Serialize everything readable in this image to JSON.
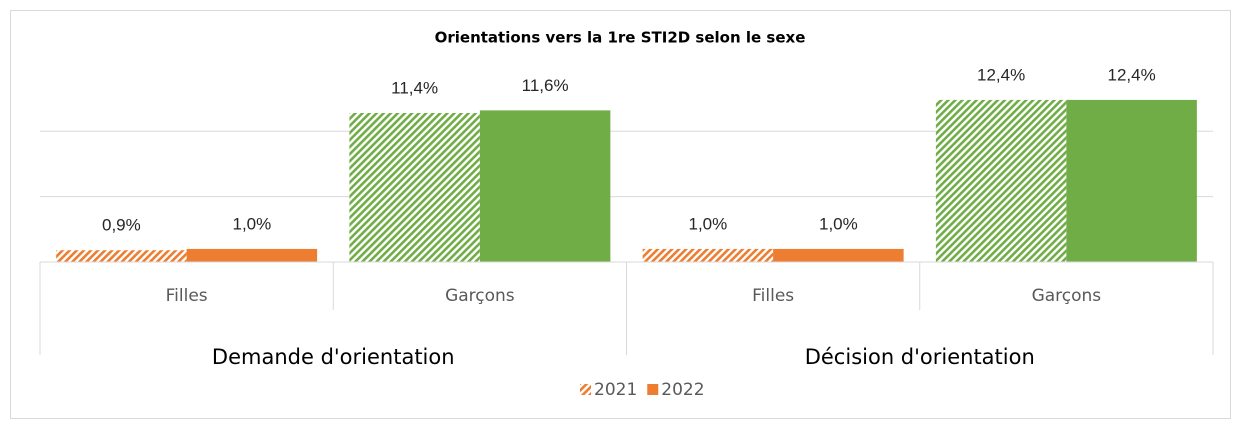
{
  "chart_data": {
    "type": "bar",
    "title": "Orientations vers la 1re STI2D selon le sexe",
    "groups": [
      "Demande d'orientation",
      "Décision d'orientation"
    ],
    "categories": [
      "Filles",
      "Garçons",
      "Filles",
      "Garçons"
    ],
    "category_colors": [
      "#ed7d31",
      "#70ad47",
      "#ed7d31",
      "#70ad47"
    ],
    "series": [
      {
        "name": "2021",
        "color": "#ed7d31",
        "pattern": "hatch",
        "values": [
          0.9,
          11.4,
          1.0,
          12.4
        ],
        "value_labels": [
          "0,9%",
          "11,4%",
          "1,0%",
          "12,4%"
        ]
      },
      {
        "name": "2022",
        "color": "#ed7d31",
        "pattern": "solid",
        "values": [
          1.0,
          11.6,
          1.0,
          12.4
        ],
        "value_labels": [
          "1,0%",
          "11,6%",
          "1,0%",
          "12,4%"
        ]
      }
    ],
    "ylim": [
      0,
      14
    ],
    "yticks": [
      0,
      5,
      10
    ],
    "grid": true,
    "legend": "bottom"
  }
}
